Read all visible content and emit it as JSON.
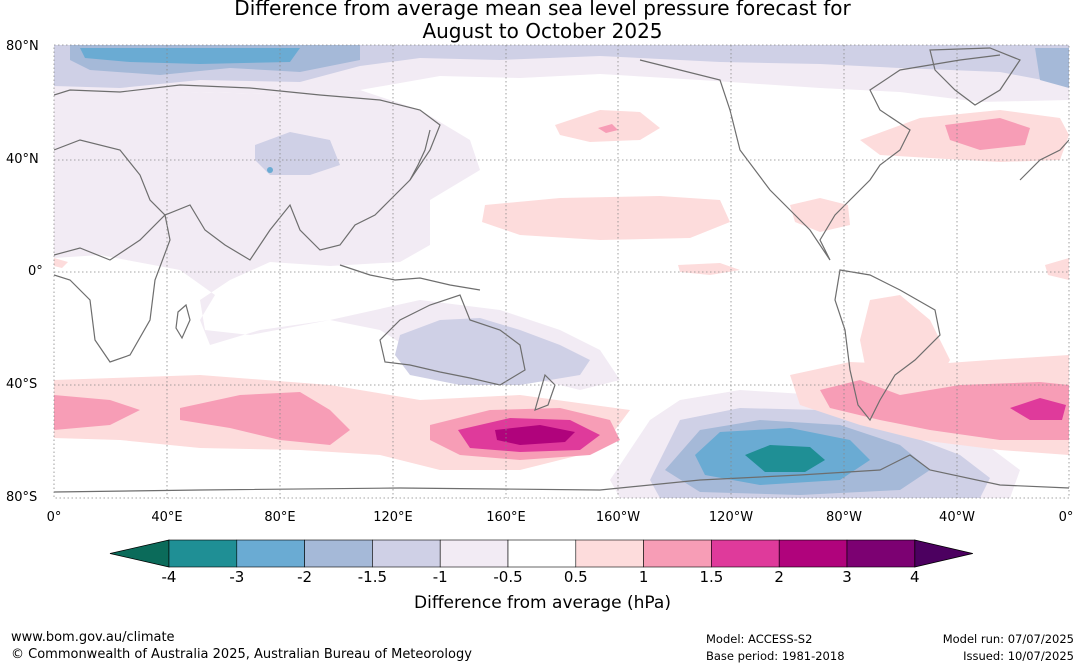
{
  "title_line1": "Difference from average mean sea level pressure forecast for",
  "title_line2": "August to October 2025",
  "lat_labels": [
    "80°N",
    "40°N",
    "0°",
    "40°S",
    "80°S"
  ],
  "lon_labels": [
    "0°",
    "40°E",
    "80°E",
    "120°E",
    "160°E",
    "160°W",
    "120°W",
    "80°W",
    "40°W",
    "0°"
  ],
  "colorbar": {
    "label": "Difference from average (hPa)",
    "ticks": [
      "-4",
      "-3",
      "-2",
      "-1.5",
      "-1",
      "-0.5",
      "0.5",
      "1",
      "1.5",
      "2",
      "3",
      "4"
    ],
    "colors": [
      "#0b6b5a",
      "#1f8f95",
      "#6aabd3",
      "#a5b9d8",
      "#cfd0e6",
      "#f2ebf4",
      "#ffffff",
      "#fddcdc",
      "#f79db6",
      "#df3a9b",
      "#b0037c",
      "#7c0172",
      "#4c0060"
    ]
  },
  "footer": {
    "website": "www.bom.gov.au/climate",
    "copyright": "© Commonwealth of Australia 2025, Australian Bureau of Meteorology",
    "model": "Model: ACCESS-S2",
    "base_period": "Base period: 1981-2018",
    "model_run": "Model run: 07/07/2025",
    "issued": "Issued: 10/07/2025"
  }
}
